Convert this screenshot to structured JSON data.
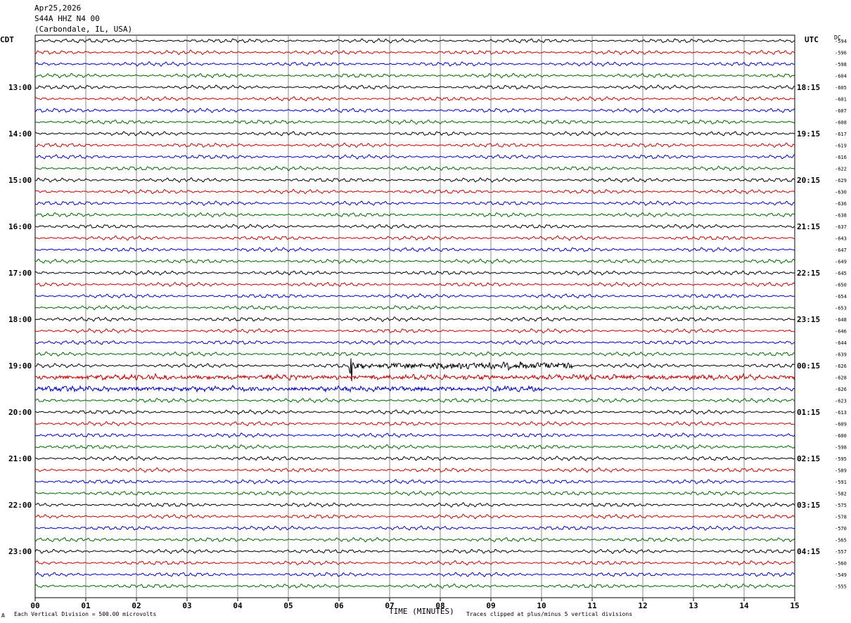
{
  "header": {
    "date": "Apr25,2026",
    "station": "S44A HHZ N4 00",
    "location": "(Carbondale, IL, USA)"
  },
  "left_axis_label": "CDT",
  "right_axis_label": "UTC",
  "dc_label": "DC",
  "footer": {
    "xlabel": "TIME (MINUTES)",
    "scale_note": "Each Vertical Division =  500.00 microvolts",
    "clip_note": "Traces clipped at plus/minus 5 vertical divisions",
    "corner_mark": "A"
  },
  "colors": {
    "trace_cycle": [
      "#000000",
      "#cc0000",
      "#0000cc",
      "#006600"
    ],
    "gridline": "#888888"
  },
  "chart_data": {
    "type": "line",
    "title": "",
    "xlabel": "TIME (MINUTES)",
    "xlim": [
      0,
      15
    ],
    "x_ticks": [
      "00",
      "01",
      "02",
      "03",
      "04",
      "05",
      "06",
      "07",
      "08",
      "09",
      "10",
      "11",
      "12",
      "13",
      "14",
      "15"
    ],
    "grid": "vertical",
    "row_count": 48,
    "row_minutes": 15,
    "left_hour_labels": [
      "13:00",
      "14:00",
      "15:00",
      "16:00",
      "17:00",
      "18:00",
      "19:00",
      "20:00",
      "21:00",
      "22:00",
      "23:00"
    ],
    "left_hour_rows": [
      4,
      8,
      12,
      16,
      20,
      24,
      28,
      32,
      36,
      40,
      44
    ],
    "right_hour_labels": [
      "18:15",
      "19:15",
      "20:15",
      "21:15",
      "22:15",
      "23:15",
      "00:15",
      "01:15",
      "02:15",
      "03:15",
      "04:15"
    ],
    "right_hour_rows": [
      4,
      8,
      12,
      16,
      20,
      24,
      28,
      32,
      36,
      40,
      44
    ],
    "dc_offsets": [
      -594,
      -596,
      -598,
      -604,
      -605,
      -601,
      -607,
      -608,
      -617,
      -619,
      -616,
      -622,
      -629,
      -630,
      -636,
      -638,
      -637,
      -643,
      -647,
      -649,
      -645,
      -650,
      -654,
      -653,
      -648,
      -646,
      -644,
      -639,
      -626,
      -628,
      -626,
      -623,
      -613,
      -609,
      -600,
      -598,
      -595,
      -589,
      -591,
      -582,
      -575,
      -578,
      -570,
      -565,
      -557,
      -560,
      -549,
      -555
    ],
    "events": [
      {
        "row": 28,
        "minute_start": 6.2,
        "minute_end": 10.6,
        "amplitude": "large",
        "peak_minute": 6.22
      },
      {
        "row": 29,
        "minute_start": 0.0,
        "minute_end": 15.0,
        "amplitude": "medium"
      },
      {
        "row": 30,
        "minute_start": 0.0,
        "minute_end": 10.0,
        "amplitude": "medium"
      }
    ]
  }
}
